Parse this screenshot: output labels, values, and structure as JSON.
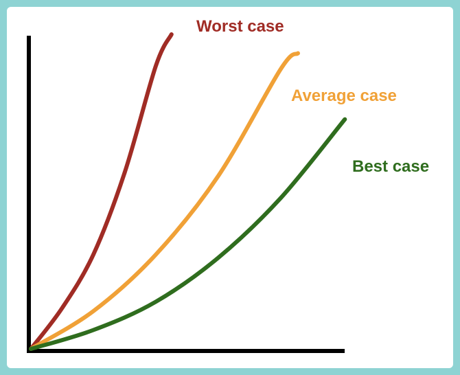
{
  "chart_data": {
    "type": "line",
    "title": "",
    "xlabel": "",
    "ylabel": "",
    "grid": false,
    "legend": "inline labels at curve ends",
    "xlim": [
      0,
      100
    ],
    "ylim": [
      0,
      100
    ],
    "series": [
      {
        "name": "Worst case",
        "color": "#a02c25",
        "x": [
          0,
          10,
          20,
          30,
          40,
          45
        ],
        "y": [
          0,
          13,
          30,
          56,
          90,
          100
        ]
      },
      {
        "name": "Average case",
        "color": "#f0a137",
        "x": [
          0,
          20,
          40,
          60,
          80,
          85.5
        ],
        "y": [
          0,
          12,
          30,
          55,
          89,
          94
        ]
      },
      {
        "name": "Best case",
        "color": "#2f6d1e",
        "x": [
          0,
          20,
          40,
          60,
          80,
          100.5
        ],
        "y": [
          0,
          6,
          15,
          29,
          48,
          73
        ]
      }
    ]
  }
}
